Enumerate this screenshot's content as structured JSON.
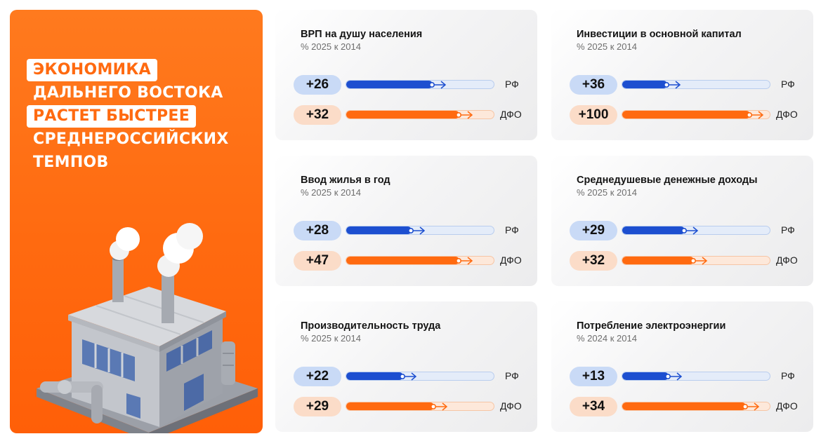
{
  "hero": {
    "lines": [
      "ЭКОНОМИКА",
      "ДАЛЬНЕГО ВОСТОКА",
      "РАСТЕТ БЫСТРЕЕ",
      "СРЕДНЕРОССИЙСКИХ",
      "ТЕМПОВ"
    ],
    "illustration": "factory-illustration"
  },
  "colors": {
    "orange": "#ff6a10",
    "blue": "#1d4fd0",
    "rf_badge": "#c9daf6",
    "dfo_badge": "#fbdcc8"
  },
  "labels": {
    "rf": "РФ",
    "dfo": "ДФО"
  },
  "chart_data": [
    {
      "type": "bar",
      "title": "ВРП на душу населения",
      "subtitle": "% 2025 к 2014",
      "series": [
        {
          "name": "РФ",
          "label": "+26",
          "value": 26,
          "fill": 0.58
        },
        {
          "name": "ДФО",
          "label": "+32",
          "value": 32,
          "fill": 0.76
        }
      ]
    },
    {
      "type": "bar",
      "title": "Инвестиции в основной капитал",
      "subtitle": "% 2025 к 2014",
      "series": [
        {
          "name": "РФ",
          "label": "+36",
          "value": 36,
          "fill": 0.3
        },
        {
          "name": "ДФО",
          "label": "+100",
          "value": 100,
          "fill": 0.86
        }
      ]
    },
    {
      "type": "bar",
      "title": "Ввод жилья в год",
      "subtitle": "% 2025 к 2014",
      "series": [
        {
          "name": "РФ",
          "label": "+28",
          "value": 28,
          "fill": 0.44
        },
        {
          "name": "ДФО",
          "label": "+47",
          "value": 47,
          "fill": 0.76
        }
      ]
    },
    {
      "type": "bar",
      "title": "Среднедушевые денежные доходы",
      "subtitle": "% 2025 к 2014",
      "series": [
        {
          "name": "РФ",
          "label": "+29",
          "value": 29,
          "fill": 0.42
        },
        {
          "name": "ДФО",
          "label": "+32",
          "value": 32,
          "fill": 0.48
        }
      ]
    },
    {
      "type": "bar",
      "title": "Производительность труда",
      "subtitle": "% 2025 к 2014",
      "series": [
        {
          "name": "РФ",
          "label": "+22",
          "value": 22,
          "fill": 0.38
        },
        {
          "name": "ДФО",
          "label": "+29",
          "value": 29,
          "fill": 0.59
        }
      ]
    },
    {
      "type": "bar",
      "title": "Потребление электроэнергии",
      "subtitle": "% 2024 к 2014",
      "series": [
        {
          "name": "РФ",
          "label": "+13",
          "value": 13,
          "fill": 0.31
        },
        {
          "name": "ДФО",
          "label": "+34",
          "value": 34,
          "fill": 0.83
        }
      ]
    }
  ]
}
